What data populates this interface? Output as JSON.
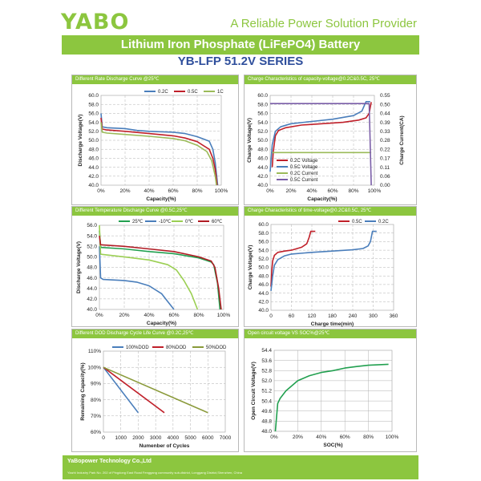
{
  "header": {
    "logo": "YABO",
    "tagline": "A Reliable Power Solution Provider",
    "banner": "Lithium Iron Phosphate (LiFePO4) Battery",
    "series": "YB-LFP 51.2V SERIES"
  },
  "footer": {
    "company": "YaBopower Technology Co.,Ltd",
    "address": "Yiazhi Industry Park No. 202 of Pingdong East Road Fenggang community sub-district,  Longgang District,Shenzhen, China"
  },
  "chart_data": [
    {
      "type": "line",
      "title": "Different Rate Discharge Curve @25℃",
      "xlabel": "Capacity(%)",
      "ylabel": "Discharge Voltage(V)",
      "xlim": [
        0,
        100
      ],
      "ylim": [
        40,
        60
      ],
      "xticks": [
        "0%",
        "20%",
        "40%",
        "60%",
        "80%",
        "100%"
      ],
      "yticks": [
        "40.0",
        "42.0",
        "44.0",
        "46.0",
        "48.0",
        "50.0",
        "52.0",
        "54.0",
        "56.0",
        "58.0",
        "60.0"
      ],
      "grid": true,
      "legend": "top-right",
      "series": [
        {
          "name": "0.2C",
          "color": "#4a7ebb",
          "points": [
            [
              0,
              56
            ],
            [
              1,
              53
            ],
            [
              5,
              52.8
            ],
            [
              20,
              52.6
            ],
            [
              30,
              52.2
            ],
            [
              40,
              52.0
            ],
            [
              60,
              51.8
            ],
            [
              70,
              51.5
            ],
            [
              80,
              50.8
            ],
            [
              90,
              49.8
            ],
            [
              93,
              48
            ],
            [
              95,
              45
            ],
            [
              97,
              40
            ]
          ]
        },
        {
          "name": "0.5C",
          "color": "#c0202a",
          "points": [
            [
              0,
              55
            ],
            [
              1,
              52.5
            ],
            [
              5,
              52.3
            ],
            [
              20,
              52
            ],
            [
              40,
              51.5
            ],
            [
              60,
              51
            ],
            [
              70,
              50.5
            ],
            [
              80,
              49.7
            ],
            [
              90,
              48
            ],
            [
              93,
              46
            ],
            [
              95,
              43.5
            ],
            [
              96.5,
              40
            ]
          ]
        },
        {
          "name": "1C",
          "color": "#9bbb59",
          "points": [
            [
              0,
              54
            ],
            [
              1,
              51.8
            ],
            [
              5,
              51.6
            ],
            [
              20,
              51.3
            ],
            [
              40,
              50.9
            ],
            [
              60,
              50.4
            ],
            [
              70,
              49.9
            ],
            [
              80,
              48.9
            ],
            [
              88,
              47.5
            ],
            [
              92,
              45.5
            ],
            [
              95,
              42
            ],
            [
              96,
              40
            ]
          ]
        }
      ]
    },
    {
      "type": "line",
      "title": "Charge  Characteristics of capacity-voltage@0.2C&0.5C, 25℃",
      "xlabel": "Capacity(%)",
      "ylabel": "Charge Voltage(V)",
      "y2label": "Charge Current(CA)",
      "xlim": [
        0,
        100
      ],
      "ylim": [
        40,
        60
      ],
      "y2lim": [
        0,
        0.55
      ],
      "xticks": [
        "0%",
        "20%",
        "40%",
        "60%",
        "80%",
        "100%"
      ],
      "yticks": [
        "40.0",
        "42.0",
        "44.0",
        "46.0",
        "48.0",
        "50.0",
        "52.0",
        "54.0",
        "56.0",
        "58.0",
        "60.0"
      ],
      "y2ticks": [
        "0.00",
        "0.06",
        "0.11",
        "0.17",
        "0.22",
        "0.28",
        "0.33",
        "0.39",
        "0.44",
        "0.50",
        "0.55"
      ],
      "grid": true,
      "legend": "bottom-left",
      "series": [
        {
          "name": "0.2C Voltage",
          "color": "#c0202a",
          "axis": "left",
          "points": [
            [
              2,
              44
            ],
            [
              3,
              47.5
            ],
            [
              5,
              51
            ],
            [
              8,
              52.2
            ],
            [
              15,
              52.8
            ],
            [
              30,
              53.4
            ],
            [
              50,
              53.7
            ],
            [
              70,
              54
            ],
            [
              85,
              54.5
            ],
            [
              92,
              55
            ],
            [
              95,
              56
            ],
            [
              97,
              58.5
            ]
          ]
        },
        {
          "name": "0.5C Voltage",
          "color": "#4a7ebb",
          "axis": "left",
          "points": [
            [
              0,
              43
            ],
            [
              2,
              49
            ],
            [
              5,
              52
            ],
            [
              10,
              53
            ],
            [
              20,
              53.7
            ],
            [
              40,
              54.2
            ],
            [
              60,
              54.7
            ],
            [
              80,
              55.5
            ],
            [
              88,
              56.5
            ],
            [
              92,
              58.6
            ],
            [
              96,
              58.6
            ]
          ]
        },
        {
          "name": "0.2C Current",
          "color": "#9bbb59",
          "axis": "right",
          "points": [
            [
              2,
              0.2
            ],
            [
              97,
              0.2
            ]
          ]
        },
        {
          "name": "0.5C Current",
          "color": "#7a5ea8",
          "axis": "right",
          "points": [
            [
              0,
              0.5
            ],
            [
              95,
              0.5
            ],
            [
              97,
              0.0
            ]
          ]
        }
      ]
    },
    {
      "type": "line",
      "title": "Different Temperature Discharge Curve @0.5C,25℃",
      "xlabel": "Capacity(%)",
      "ylabel": "Discharge Voltage(V)",
      "xlim": [
        0,
        100
      ],
      "ylim": [
        40,
        56
      ],
      "xticks": [
        "0%",
        "20%",
        "40%",
        "60%",
        "80%",
        "100%"
      ],
      "yticks": [
        "40.0",
        "42.0",
        "44.0",
        "46.0",
        "48.0",
        "50.0",
        "52.0",
        "54.0",
        "56.0"
      ],
      "grid": true,
      "legend": "top",
      "series": [
        {
          "name": "25℃",
          "color": "#22a050",
          "points": [
            [
              0,
              55
            ],
            [
              1,
              51.8
            ],
            [
              20,
              51.5
            ],
            [
              40,
              51
            ],
            [
              60,
              50.6
            ],
            [
              80,
              49.8
            ],
            [
              90,
              49
            ],
            [
              92,
              48.5
            ],
            [
              95,
              45
            ],
            [
              97,
              40
            ]
          ]
        },
        {
          "name": "-10℃",
          "color": "#4a7ebb",
          "points": [
            [
              0,
              52
            ],
            [
              1,
              46
            ],
            [
              3,
              45.7
            ],
            [
              20,
              45.5
            ],
            [
              30,
              45.2
            ],
            [
              40,
              44.5
            ],
            [
              50,
              43
            ],
            [
              55,
              41.5
            ],
            [
              60,
              40
            ]
          ]
        },
        {
          "name": "0℃",
          "color": "#9bcf53",
          "points": [
            [
              0,
              56
            ],
            [
              1,
              50.5
            ],
            [
              20,
              50
            ],
            [
              40,
              49.4
            ],
            [
              55,
              48.5
            ],
            [
              62,
              47.5
            ],
            [
              68,
              45.5
            ],
            [
              74,
              43
            ],
            [
              79,
              40
            ]
          ]
        },
        {
          "name": "60℃",
          "color": "#b01c24",
          "points": [
            [
              0,
              54
            ],
            [
              1,
              52.3
            ],
            [
              20,
              52
            ],
            [
              40,
              51.5
            ],
            [
              60,
              51
            ],
            [
              80,
              50
            ],
            [
              90,
              49.2
            ],
            [
              93,
              48
            ],
            [
              96,
              44
            ],
            [
              98,
              40
            ]
          ]
        }
      ]
    },
    {
      "type": "line",
      "title": "Charge  Characteristics of time-voltage@0.2C&0.5C, 25℃",
      "xlabel": "Charge time(min)",
      "ylabel": "Charge Voltage(V)",
      "xlim": [
        0,
        360
      ],
      "ylim": [
        40,
        60
      ],
      "xticks": [
        "0",
        "60",
        "120",
        "180",
        "240",
        "300",
        "360"
      ],
      "yticks": [
        "40.0",
        "42.0",
        "44.0",
        "46.0",
        "48.0",
        "50.0",
        "52.0",
        "54.0",
        "56.0",
        "58.0",
        "60.0"
      ],
      "grid": true,
      "legend": "top-right",
      "series": [
        {
          "name": "0.5C",
          "color": "#c0202a",
          "points": [
            [
              0,
              45.5
            ],
            [
              2,
              49
            ],
            [
              5,
              51.5
            ],
            [
              10,
              52.8
            ],
            [
              20,
              53.5
            ],
            [
              40,
              53.8
            ],
            [
              60,
              54
            ],
            [
              90,
              54.7
            ],
            [
              105,
              55.5
            ],
            [
              112,
              57
            ],
            [
              117,
              58.4
            ],
            [
              130,
              58.4
            ]
          ]
        },
        {
          "name": "0.2C",
          "color": "#4a7ebb",
          "points": [
            [
              0,
              44.5
            ],
            [
              5,
              48
            ],
            [
              10,
              50.5
            ],
            [
              20,
              51.8
            ],
            [
              40,
              52.7
            ],
            [
              60,
              53.1
            ],
            [
              120,
              53.5
            ],
            [
              180,
              53.8
            ],
            [
              240,
              54.1
            ],
            [
              270,
              54.4
            ],
            [
              285,
              55
            ],
            [
              292,
              56
            ],
            [
              298,
              58.4
            ],
            [
              310,
              58.4
            ]
          ]
        }
      ]
    },
    {
      "type": "line",
      "title": "Different DOD Discharge Cycle Life Curve @0.2C,25℃",
      "xlabel": "Numenber of Cycles",
      "ylabel": "Remaining Capacity(%)",
      "xlim": [
        0,
        7000
      ],
      "ylim": [
        60,
        110
      ],
      "xticks": [
        "0",
        "1000",
        "2000",
        "3000",
        "4000",
        "5000",
        "6000",
        "7000"
      ],
      "yticks": [
        "60%",
        "70%",
        "80%",
        "90%",
        "100%",
        "110%"
      ],
      "grid": true,
      "legend": "top",
      "series": [
        {
          "name": "100%DOD",
          "color": "#4a7ebb",
          "points": [
            [
              0,
              100
            ],
            [
              2000,
              72
            ]
          ]
        },
        {
          "name": "80%DOD",
          "color": "#c0202a",
          "points": [
            [
              0,
              100
            ],
            [
              3500,
              72
            ]
          ]
        },
        {
          "name": "50%DOD",
          "color": "#8a9a3a",
          "points": [
            [
              0,
              100
            ],
            [
              6000,
              72
            ]
          ]
        }
      ]
    },
    {
      "type": "line",
      "title": "Open circuit voltage VS SOC%@25℃",
      "xlabel": "SOC(%)",
      "ylabel": "Open Circuit Voltage(V)",
      "xlim": [
        0,
        100
      ],
      "ylim": [
        48,
        54.4
      ],
      "xticks": [
        "0%",
        "20%",
        "40%",
        "60%",
        "80%",
        "100%"
      ],
      "yticks": [
        "48.0",
        "48.8",
        "49.6",
        "50.4",
        "51.2",
        "52.0",
        "52.8",
        "53.6",
        "54.4"
      ],
      "grid": true,
      "legend": "none",
      "series": [
        {
          "color": "#22a050",
          "points": [
            [
              1,
              48
            ],
            [
              3,
              50.2
            ],
            [
              5,
              50.6
            ],
            [
              10,
              51.2
            ],
            [
              20,
              52.0
            ],
            [
              30,
              52.4
            ],
            [
              40,
              52.65
            ],
            [
              50,
              52.8
            ],
            [
              60,
              53.0
            ],
            [
              70,
              53.12
            ],
            [
              80,
              53.22
            ],
            [
              97,
              53.3
            ]
          ]
        }
      ]
    }
  ]
}
